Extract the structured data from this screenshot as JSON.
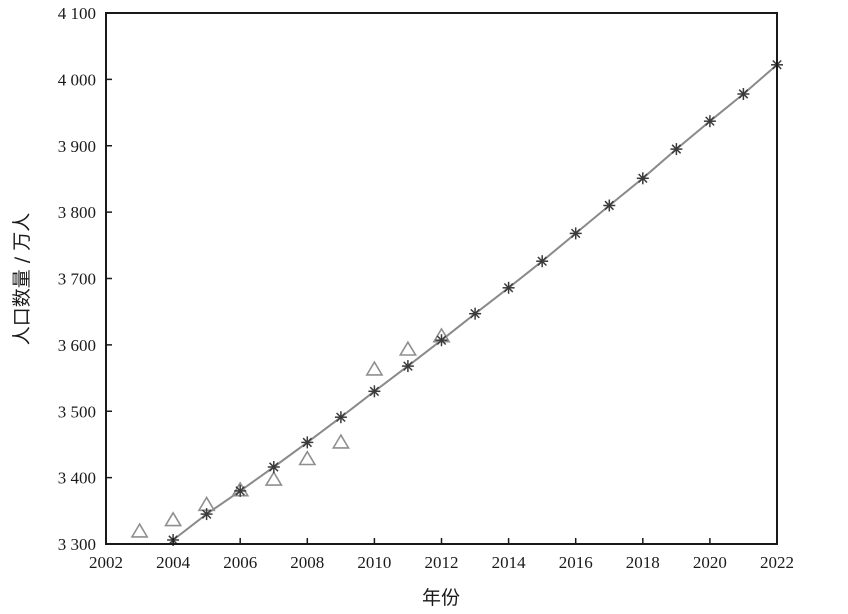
{
  "chart_data": {
    "type": "scatter",
    "xlabel": "年份",
    "ylabel": "人口数量 / 万人",
    "xlim": [
      2002,
      2022
    ],
    "ylim": [
      3300,
      4100
    ],
    "x_ticks": [
      2002,
      2004,
      2006,
      2008,
      2010,
      2012,
      2014,
      2016,
      2018,
      2020,
      2022
    ],
    "x_tick_labels": [
      "2002",
      "2004",
      "2006",
      "2008",
      "2010",
      "2012",
      "2014",
      "2016",
      "2018",
      "2020",
      "2022"
    ],
    "y_ticks": [
      3300,
      3400,
      3500,
      3600,
      3700,
      3800,
      3900,
      4000,
      4100
    ],
    "y_tick_labels": [
      "3 300",
      "3 400",
      "3 500",
      "3 600",
      "3 700",
      "3 800",
      "3 900",
      "4 000",
      "4 100"
    ],
    "grid": false,
    "series": [
      {
        "marker": "triangle-open",
        "color": "#8f8f8f",
        "x": [
          2003,
          2004,
          2005,
          2006,
          2007,
          2008,
          2009,
          2010,
          2011,
          2012
        ],
        "y": [
          3318,
          3335,
          3358,
          3380,
          3396,
          3427,
          3452,
          3562,
          3592,
          3612
        ]
      },
      {
        "marker": "star",
        "line": true,
        "color": "#3a3a3a",
        "line_color": "#8a8a8a",
        "x": [
          2004,
          2005,
          2006,
          2007,
          2008,
          2009,
          2010,
          2011,
          2012,
          2013,
          2014,
          2015,
          2016,
          2017,
          2018,
          2019,
          2020,
          2021,
          2022
        ],
        "y": [
          3306,
          3345,
          3380,
          3416,
          3453,
          3491,
          3530,
          3568,
          3607,
          3647,
          3686,
          3726,
          3768,
          3810,
          3851,
          3895,
          3937,
          3978,
          4022
        ]
      }
    ]
  }
}
